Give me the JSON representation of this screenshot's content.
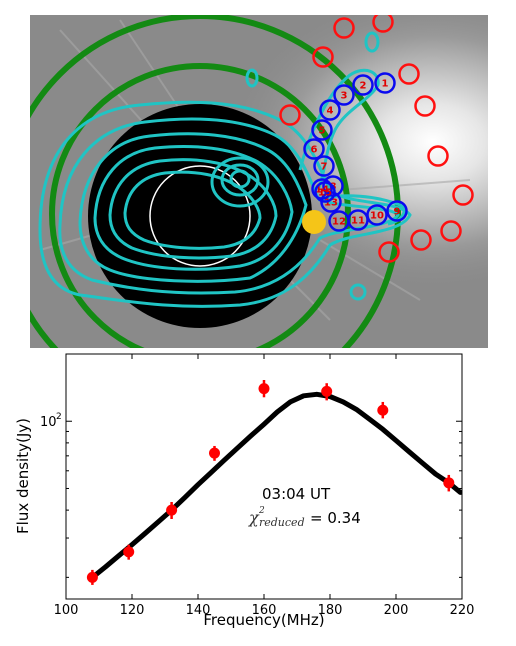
{
  "colors": {
    "sky": "#8a8a8a",
    "disk": "#000000",
    "contour": "#20c4c4",
    "ring": "#138a13",
    "red_marker": "#ff1010",
    "blue_marker": "#0a0af0",
    "sun_dot": "#f5c518",
    "point": "#ff0000",
    "fit": "#000000"
  },
  "image_panel": {
    "blue_marker_labels": [
      "1",
      "2",
      "3",
      "4",
      "5",
      "6",
      "7",
      "8",
      "9",
      "10",
      "11",
      "12",
      "13",
      "14",
      "15"
    ]
  },
  "chart_data": {
    "type": "scatter",
    "xlabel": "Frequency(MHz)",
    "ylabel": "Flux density(Jy)",
    "xlim": [
      100,
      220
    ],
    "ylim": [
      16,
      200
    ],
    "yscale": "log",
    "x_ticks": [
      100,
      120,
      140,
      160,
      180,
      200,
      220
    ],
    "y_ticks": [
      {
        "value": 100,
        "base": "10",
        "exp": "2"
      }
    ],
    "annotation_time": "03:04 UT",
    "annotation_chi_symbol": "χ",
    "annotation_chi_sup": "2",
    "annotation_chi_sub": "reduced",
    "annotation_chi_value": "= 0.34",
    "series": [
      {
        "points": [
          {
            "x": 108,
            "y": 20,
            "err_lo": 1.5,
            "err_hi": 1.6
          },
          {
            "x": 119,
            "y": 26,
            "err_lo": 2.0,
            "err_hi": 2.0
          },
          {
            "x": 132,
            "y": 40,
            "err_lo": 3.5,
            "err_hi": 3.5
          },
          {
            "x": 145,
            "y": 72,
            "err_lo": 5.5,
            "err_hi": 5.5
          },
          {
            "x": 160,
            "y": 140,
            "err_lo": 12,
            "err_hi": 13
          },
          {
            "x": 179,
            "y": 136,
            "err_lo": 12,
            "err_hi": 12
          },
          {
            "x": 196,
            "y": 112,
            "err_lo": 9,
            "err_hi": 10
          },
          {
            "x": 216,
            "y": 53,
            "err_lo": 4.5,
            "err_hi": 4.5
          }
        ]
      }
    ],
    "fit_curve": {
      "x": [
        108,
        112,
        116,
        120,
        124,
        128,
        132,
        136,
        140,
        144,
        148,
        152,
        156,
        160,
        164,
        168,
        172,
        176,
        180,
        184,
        188,
        192,
        196,
        200,
        204,
        208,
        212,
        216,
        219.5
      ],
      "y": [
        20,
        22.3,
        25,
        28,
        31.5,
        35.5,
        40,
        45.5,
        52,
        59,
        67,
        76,
        86,
        97,
        110,
        122,
        130,
        132,
        129,
        122,
        113,
        102,
        92,
        82,
        73,
        65,
        58,
        53,
        48
      ]
    }
  }
}
